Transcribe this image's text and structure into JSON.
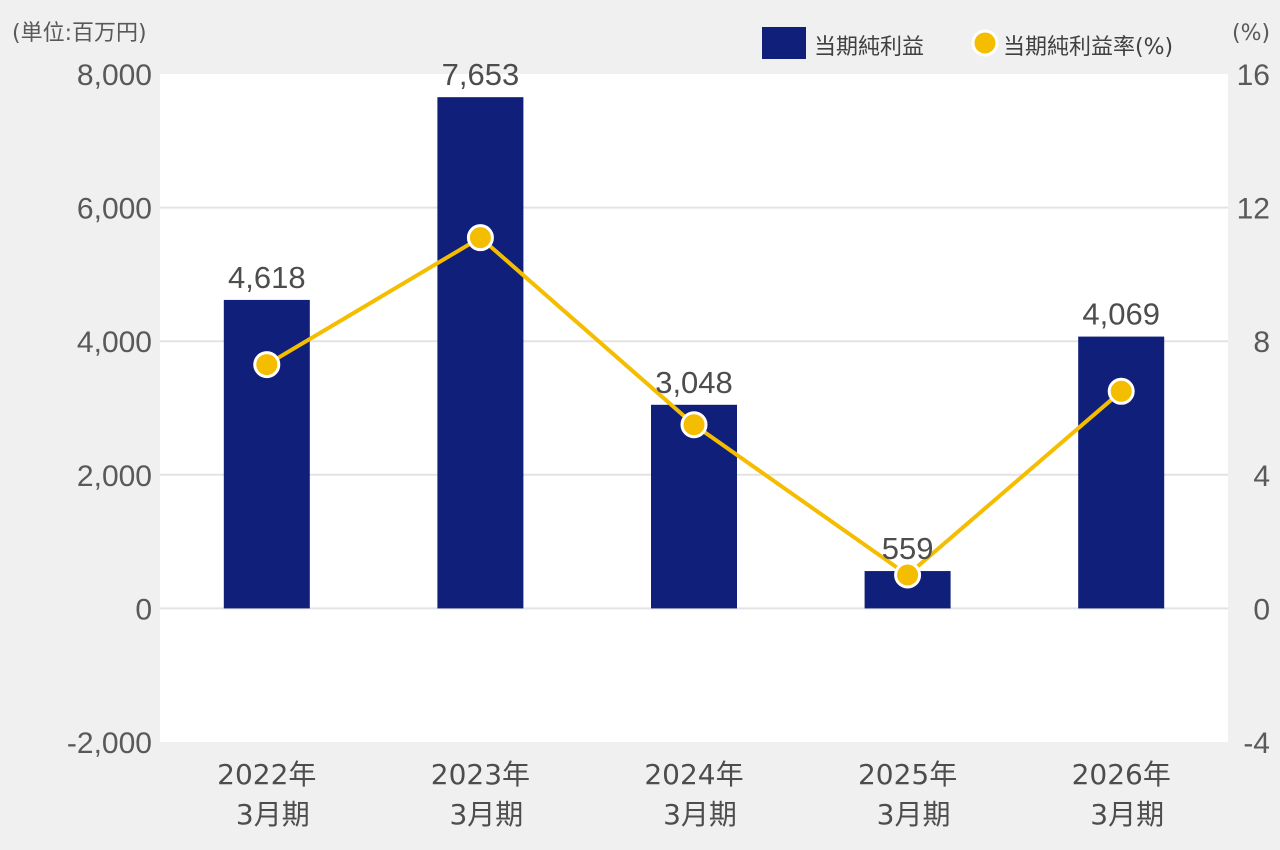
{
  "chart_data": {
    "type": "bar",
    "unit_left": "(単位:百万円)",
    "unit_right": "(%)",
    "categories": [
      [
        "2022年",
        "3月期"
      ],
      [
        "2023年",
        "3月期"
      ],
      [
        "2024年",
        "3月期"
      ],
      [
        "2025年",
        "3月期"
      ],
      [
        "2026年",
        "3月期"
      ]
    ],
    "series": [
      {
        "name": "当期純利益",
        "type": "bar",
        "axis": "left",
        "values": [
          4618,
          7653,
          3048,
          559,
          4069
        ],
        "labels": [
          "4,618",
          "7,653",
          "3,048",
          "559",
          "4,069"
        ],
        "color": "#0f1f7a"
      },
      {
        "name": "当期純利益率(%)",
        "type": "line",
        "axis": "right",
        "values": [
          7.3,
          11.1,
          5.5,
          1.0,
          6.5
        ],
        "color": "#f5bd00"
      }
    ],
    "y_left": {
      "lim": [
        -2000,
        8000
      ],
      "ticks": [
        -2000,
        0,
        2000,
        4000,
        6000,
        8000
      ],
      "tick_labels": [
        "-2,000",
        "0",
        "2,000",
        "4,000",
        "6,000",
        "8,000"
      ]
    },
    "y_right": {
      "lim": [
        -4,
        16
      ],
      "ticks": [
        -4,
        0,
        4,
        8,
        12,
        16
      ],
      "tick_labels": [
        "-4",
        "0",
        "4",
        "8",
        "12",
        "16"
      ]
    },
    "grid": true,
    "legend_position": "top-right",
    "colors": {
      "page_background": "#f0f0f0",
      "plot_background": "#ffffff",
      "grid": "#e3e3e3",
      "bar": "#0f1f7a",
      "line": "#f5bd00"
    }
  }
}
